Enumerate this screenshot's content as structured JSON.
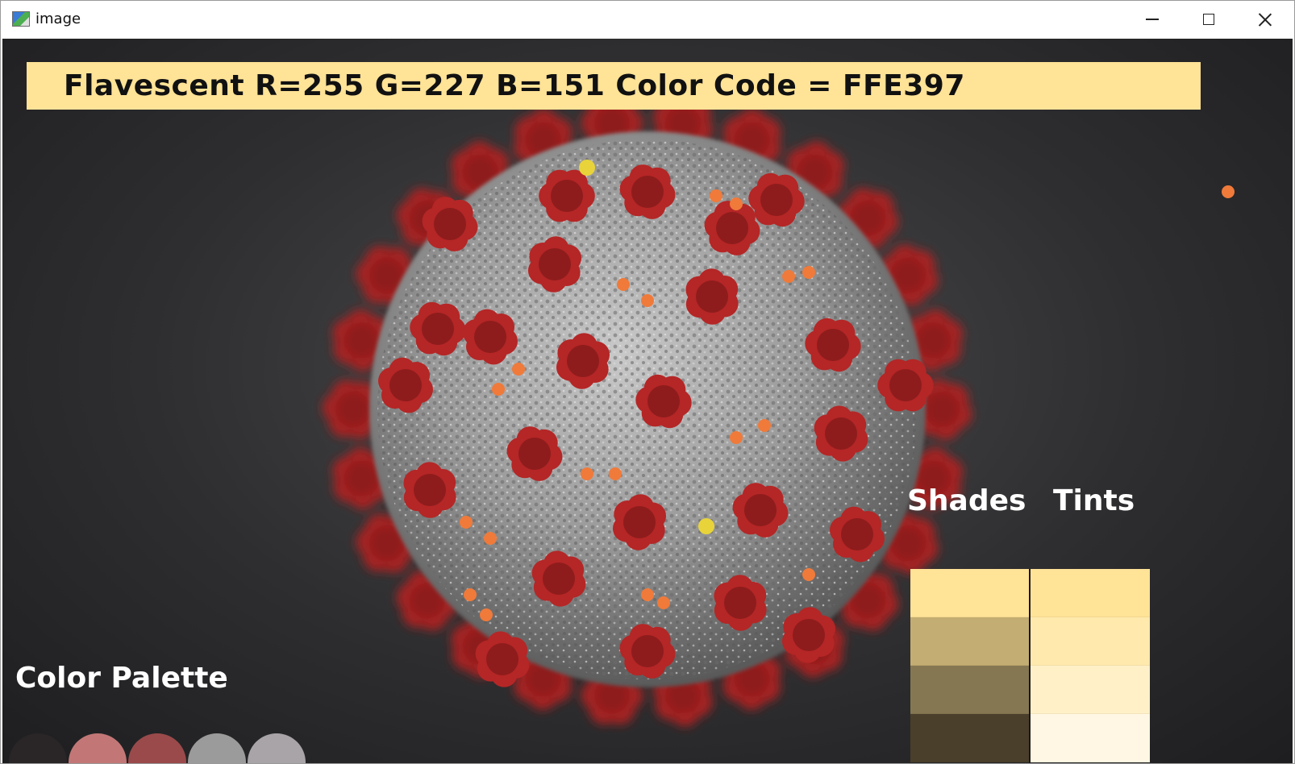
{
  "window": {
    "title": "image",
    "icon": "image-window-icon",
    "controls": [
      "minimize-icon",
      "maximize-icon",
      "close-icon"
    ]
  },
  "info_bar": {
    "text": "Flavescent R=255 G=227 B=151 Color Code = FFE397",
    "color_name": "Flavescent",
    "r": 255,
    "g": 227,
    "b": 151,
    "hex": "#FFE397"
  },
  "labels": {
    "shades": "Shades",
    "tints": "Tints",
    "palette": "Color Palette"
  },
  "shades": [
    "#FFE397",
    "#C4AD72",
    "#857752",
    "#4A3F2A"
  ],
  "tints": [
    "#FFE397",
    "#FFE9AD",
    "#FFF0C8",
    "#FFF7E3"
  ],
  "palette": [
    "#2A2627",
    "#C27776",
    "#9A4A4B",
    "#9B9B9B",
    "#A8A4A8"
  ]
}
